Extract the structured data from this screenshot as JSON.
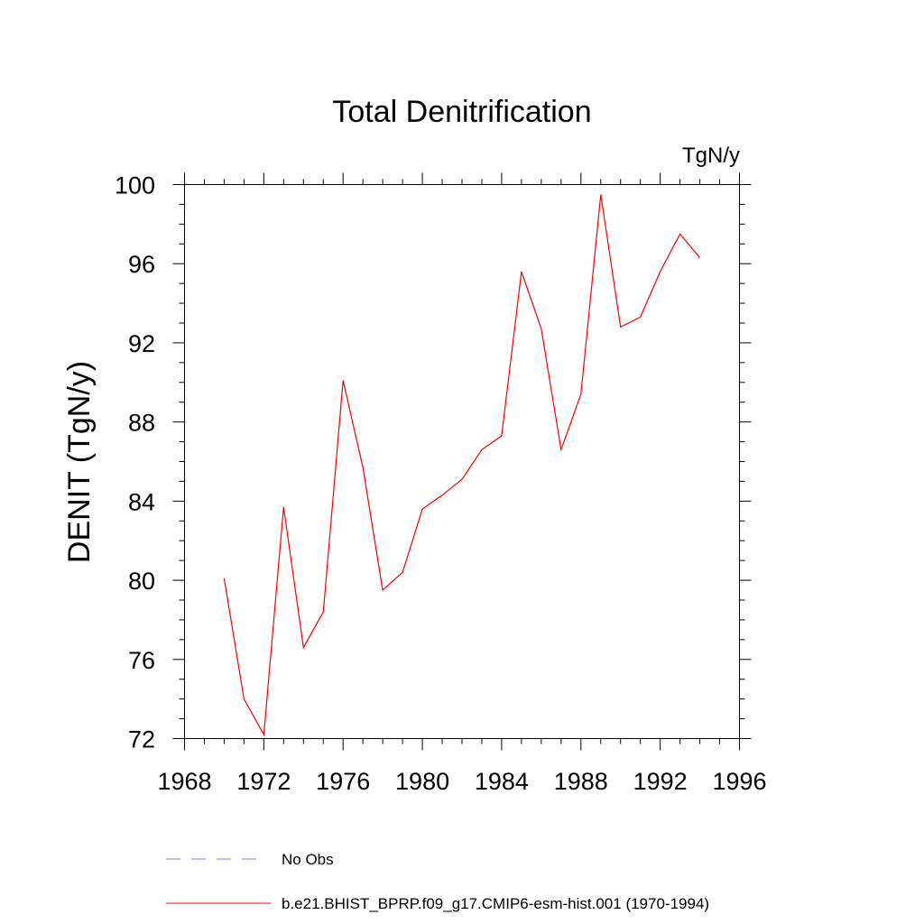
{
  "chart_data": {
    "type": "line",
    "title": "Total Denitrification",
    "units": "TgN/y",
    "xlabel": "",
    "ylabel": "DENIT  (TgN/y)",
    "xlim": [
      1968,
      1996
    ],
    "ylim": [
      72,
      100
    ],
    "x_ticks": [
      1968,
      1972,
      1976,
      1980,
      1984,
      1988,
      1992,
      1996
    ],
    "y_ticks": [
      72,
      76,
      80,
      84,
      88,
      92,
      96,
      100
    ],
    "x_minor_step": 1,
    "y_minor_step": 1,
    "grid": false,
    "x": [
      1970,
      1971,
      1972,
      1973,
      1974,
      1975,
      1976,
      1977,
      1978,
      1979,
      1980,
      1981,
      1982,
      1983,
      1984,
      1985,
      1986,
      1987,
      1988,
      1989,
      1990,
      1991,
      1992,
      1993,
      1994
    ],
    "series": [
      {
        "name": "b.e21.BHIST_BPRP.f09_g17.CMIP6-esm-hist.001 (1970-1994)",
        "color": "#ff0000",
        "dash": "solid",
        "values": [
          80.1,
          74.0,
          72.2,
          83.7,
          76.6,
          78.4,
          90.1,
          85.7,
          79.5,
          80.4,
          83.6,
          84.3,
          85.1,
          86.6,
          87.3,
          95.6,
          92.7,
          86.6,
          89.4,
          99.5,
          92.8,
          93.3,
          95.6,
          97.5,
          96.3
        ]
      }
    ],
    "legend": {
      "position": "bottom",
      "entries": [
        {
          "label": "No Obs",
          "color": "#8080ff",
          "dash": "dashed"
        },
        {
          "label": "b.e21.BHIST_BPRP.f09_g17.CMIP6-esm-hist.001 (1970-1994)",
          "color": "#ff0000",
          "dash": "solid"
        }
      ]
    }
  }
}
